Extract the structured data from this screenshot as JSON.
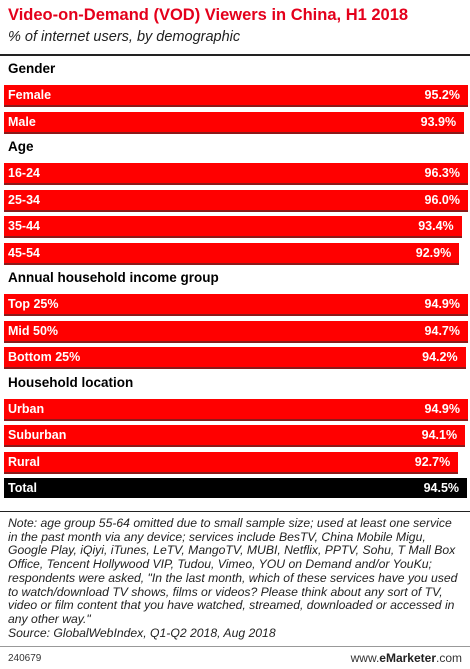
{
  "title": "Video-on-Demand (VOD) Viewers in China, H1 2018",
  "subtitle": "% of internet users, by demographic",
  "chart_data": {
    "type": "bar",
    "orientation": "horizontal",
    "xlim": [
      0,
      100
    ],
    "value_suffix": "%",
    "colors": {
      "bar": "#ff0000",
      "total": "#000000",
      "title": "#e4001b"
    },
    "groups": [
      {
        "name": "Gender",
        "items": [
          {
            "label": "Female",
            "value": 95.2,
            "display": "95.2%"
          },
          {
            "label": "Male",
            "value": 93.9,
            "display": "93.9%"
          }
        ]
      },
      {
        "name": "Age",
        "items": [
          {
            "label": "16-24",
            "value": 96.3,
            "display": "96.3%"
          },
          {
            "label": "25-34",
            "value": 96.0,
            "display": "96.0%"
          },
          {
            "label": "35-44",
            "value": 93.4,
            "display": "93.4%"
          },
          {
            "label": "45-54",
            "value": 92.9,
            "display": "92.9%"
          }
        ]
      },
      {
        "name": "Annual household income group",
        "items": [
          {
            "label": "Top 25%",
            "value": 94.9,
            "display": "94.9%"
          },
          {
            "label": "Mid 50%",
            "value": 94.7,
            "display": "94.7%"
          },
          {
            "label": "Bottom 25%",
            "value": 94.2,
            "display": "94.2%"
          }
        ]
      },
      {
        "name": "Household location",
        "items": [
          {
            "label": "Urban",
            "value": 94.9,
            "display": "94.9%"
          },
          {
            "label": "Suburban",
            "value": 94.1,
            "display": "94.1%"
          },
          {
            "label": "Rural",
            "value": 92.7,
            "display": "92.7%"
          }
        ]
      }
    ],
    "total": {
      "label": "Total",
      "value": 94.5,
      "display": "94.5%"
    }
  },
  "note": "Note: age group 55-64 omitted due to small sample size; used at least one service in the past month via any device; services include BesTV, China Mobile Migu, Google Play, iQiyi, iTunes, LeTV, MangoTV, MUBI, Netflix, PPTV, Sohu, T Mall Box Office, Tencent Hollywood VIP, Tudou, Vimeo, YOU on Demand and/or YouKu; respondents were asked, \"In the last month, which of these services have you used to watch/download TV shows, films or videos? Please think about any sort of TV, video or film content that you have watched, streamed, downloaded or accessed in any other way.\"",
  "source": "Source: GlobalWebIndex, Q1-Q2 2018, Aug 2018",
  "chart_id": "240679",
  "brand": {
    "prefix": "www.",
    "name": "eMarketer",
    "suffix": ".com"
  }
}
